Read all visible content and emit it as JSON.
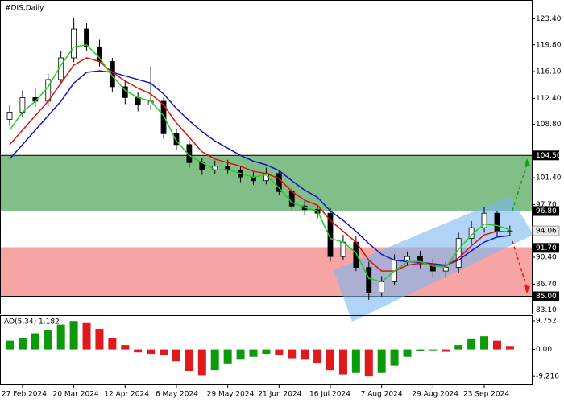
{
  "chart_data": {
    "type": "candlestick",
    "title": "#DIS,Daily",
    "categories": [
      null,
      "27 Feb 2024",
      null,
      null,
      null,
      "20 Mar 2024",
      null,
      null,
      null,
      "12 Apr 2024",
      null,
      null,
      null,
      "6 May 2024",
      null,
      null,
      null,
      "29 May 2024",
      null,
      null,
      null,
      "21 Jun 2024",
      null,
      null,
      null,
      "16 Jul 2024",
      null,
      null,
      null,
      "7 Aug 2024",
      null,
      null,
      null,
      "29 Aug 2024",
      null,
      null,
      null,
      "23 Sep 2024",
      null,
      null
    ],
    "open": [
      109.5,
      110.5,
      112.5,
      112,
      115,
      118,
      122,
      119.5,
      117.5,
      114,
      112.5,
      111.5,
      112,
      107.5,
      106,
      103.5,
      102.5,
      103,
      102.5,
      101.5,
      101,
      102,
      99.5,
      97.5,
      97,
      96.5,
      90.5,
      92.5,
      89,
      85.5,
      87,
      90,
      90.5,
      89.5,
      88.5,
      89,
      93,
      94.5,
      96.5,
      94
    ],
    "high": [
      111.5,
      113.5,
      113.8,
      115.8,
      119,
      123.5,
      122.8,
      120.5,
      118,
      114.8,
      113.2,
      116.8,
      112.5,
      108.2,
      106.5,
      104.2,
      103.8,
      103.9,
      103,
      102.2,
      102.8,
      102.5,
      100,
      98.2,
      97.6,
      97.2,
      93.5,
      93.4,
      89.8,
      87.8,
      90.8,
      91.2,
      91.3,
      90.2,
      89.8,
      93.8,
      95.4,
      97.3,
      96.8,
      94.8
    ],
    "low": [
      108.6,
      109.8,
      111.2,
      111.3,
      114.3,
      117.4,
      119,
      116.8,
      113.3,
      111.6,
      110.6,
      110.8,
      106.8,
      105.2,
      102.8,
      101.8,
      101.9,
      102,
      100.8,
      100.4,
      100.5,
      99,
      97,
      96.3,
      95.8,
      89.8,
      90,
      88.5,
      84.5,
      85,
      86.5,
      89.4,
      88.9,
      87.6,
      87.5,
      88.3,
      92.3,
      93.8,
      93.2,
      93.3
    ],
    "close": [
      110.5,
      112.5,
      112,
      115,
      118,
      122,
      119.5,
      117.5,
      114,
      112.5,
      111.5,
      112,
      107.5,
      106,
      103.5,
      102.5,
      103,
      102.5,
      101.5,
      101,
      102,
      99.5,
      97.5,
      97,
      96.5,
      90.5,
      92.5,
      89,
      85.5,
      87,
      90,
      90.5,
      89.5,
      88.5,
      89,
      93,
      94.5,
      96.5,
      94,
      94.06
    ],
    "bull_color": "#ffffff",
    "bear_color": "#000000",
    "moving_averages": [
      {
        "color": "#1414c8",
        "values": [
          104,
          106,
          108,
          110,
          112,
          114.5,
          116,
          116.2,
          116,
          115.5,
          115,
          114.5,
          113,
          111,
          109.3,
          107.8,
          106.5,
          105.5,
          104.5,
          103.7,
          103.2,
          102.4,
          101,
          99.7,
          98.7,
          96.8,
          95.5,
          94,
          92.3,
          90.8,
          90,
          89.8,
          89.7,
          89.5,
          89.3,
          90,
          91.3,
          92.5,
          93.2,
          93.4
        ]
      },
      {
        "color": "#e01010",
        "values": [
          106,
          108,
          110,
          112,
          114.5,
          117,
          118,
          117.5,
          116,
          114.8,
          113.8,
          113,
          111.5,
          109,
          107,
          105,
          104,
          103.5,
          103,
          102.3,
          102,
          101.3,
          99.5,
          98.3,
          97.6,
          95.5,
          94,
          92.5,
          90,
          88.5,
          88.5,
          89.3,
          89.6,
          89.4,
          89.2,
          90.3,
          92,
          93.5,
          94,
          93.9
        ]
      },
      {
        "color": "#20d020",
        "values": [
          108,
          110.5,
          112,
          114,
          117,
          119.5,
          119.8,
          118,
          115.5,
          113.5,
          112.5,
          112,
          110,
          106.5,
          104.5,
          103.5,
          102.5,
          102.5,
          102,
          101.5,
          101.8,
          100,
          98,
          97.3,
          96.8,
          93,
          92.5,
          91,
          87.5,
          87,
          88.5,
          89.8,
          89.8,
          89.2,
          89,
          91.5,
          93.5,
          95,
          94.8,
          94.2
        ]
      }
    ],
    "ylim": [
      82.5,
      125.9
    ],
    "yticks": [
      {
        "value": 123.4,
        "label": "123.40"
      },
      {
        "value": 119.8,
        "label": "119.80"
      },
      {
        "value": 116.1,
        "label": "116.10"
      },
      {
        "value": 112.4,
        "label": "112.40"
      },
      {
        "value": 108.8,
        "label": "108.80"
      },
      {
        "value": 101.4,
        "label": "101.40"
      },
      {
        "value": 97.7,
        "label": "97.70"
      },
      {
        "value": 90.4,
        "label": "90.40"
      },
      {
        "value": 86.7,
        "label": "86.70"
      },
      {
        "value": 83.1,
        "label": "83.10"
      }
    ],
    "levels": [
      {
        "value": 104.5,
        "label": "104.50",
        "zone_color": "#82bf88"
      },
      {
        "value": 96.8,
        "label": "96.80"
      },
      {
        "value": 91.7,
        "label": "91.70",
        "zone_color": "#f6a4a4"
      },
      {
        "value": 85,
        "label": "85.00"
      }
    ],
    "last_price": {
      "value": 94.06,
      "label": "94.06"
    },
    "oscillator": {
      "title": "AO(5,34) 1.182",
      "up_color": "#0a9a0a",
      "down_color": "#e01a1a",
      "values": [
        3,
        4,
        5.5,
        6.5,
        8.5,
        9.7,
        9,
        7,
        4,
        1.5,
        -1,
        -1.5,
        -2,
        -4,
        -7.5,
        -9,
        -7,
        -5,
        -3.5,
        -2.5,
        -1.5,
        -1.8,
        -3,
        -3.5,
        -4.5,
        -7,
        -8.5,
        -8,
        -9.2,
        -8,
        -5.5,
        -2.5,
        -0.5,
        -0.3,
        -0.8,
        1.5,
        3.5,
        4.5,
        3,
        1.182
      ],
      "ylim": [
        -11.9,
        11.4
      ],
      "yticks": [
        9.752,
        {
          "value": 0,
          "label": "0.00"
        },
        -9.216
      ]
    }
  }
}
